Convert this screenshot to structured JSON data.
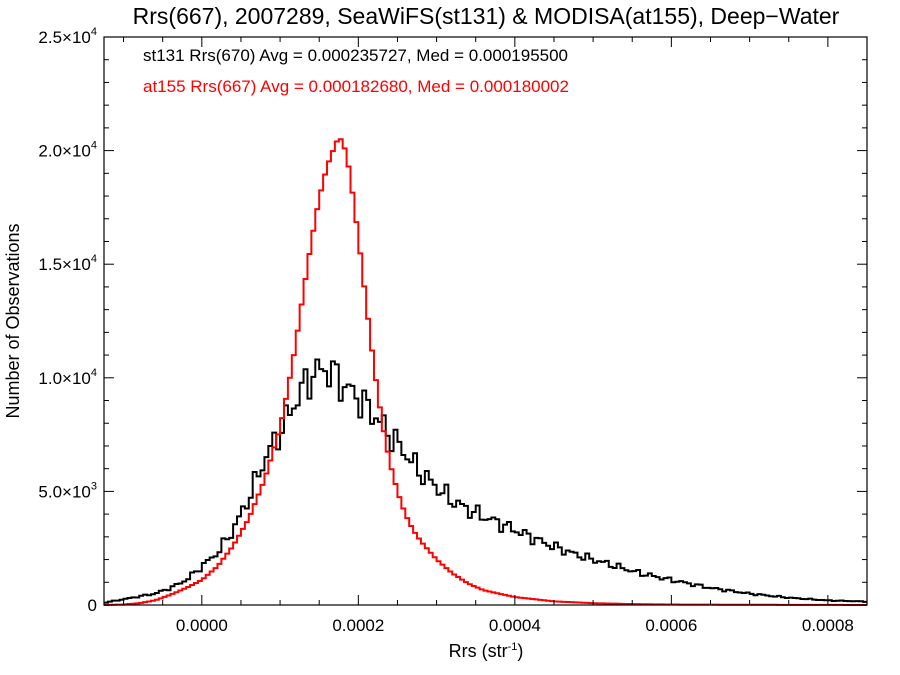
{
  "chart_data": {
    "type": "histogram",
    "title": "Rrs(667), 2007289, SeaWiFS(st131) & MODISA(at155), Deep−Water",
    "xlabel": "Rrs (str",
    "xlabel_sup": "-1",
    "xlabel_close": ")",
    "ylabel": "Number of Observations",
    "xlim": [
      -0.000125,
      0.00085
    ],
    "ylim": [
      0,
      25000
    ],
    "grid": false,
    "x_ticks": [
      {
        "value": 0.0,
        "label": "0.0000"
      },
      {
        "value": 0.0002,
        "label": "0.0002"
      },
      {
        "value": 0.0004,
        "label": "0.0004"
      },
      {
        "value": 0.0006,
        "label": "0.0006"
      },
      {
        "value": 0.0008,
        "label": "0.0008"
      }
    ],
    "y_ticks": [
      {
        "value": 0,
        "label": "0",
        "mant": "",
        "exp": ""
      },
      {
        "value": 5000,
        "label": "",
        "mant": "5.0×10",
        "exp": "3"
      },
      {
        "value": 10000,
        "label": "",
        "mant": "1.0×10",
        "exp": "4"
      },
      {
        "value": 15000,
        "label": "",
        "mant": "1.5×10",
        "exp": "4"
      },
      {
        "value": 20000,
        "label": "",
        "mant": "2.0×10",
        "exp": "4"
      },
      {
        "value": 25000,
        "label": "",
        "mant": "2.5×10",
        "exp": "4"
      }
    ],
    "bin_width": 5e-06,
    "series": [
      {
        "name": "st131 Rrs(670)",
        "legend_text": "st131 Rrs(670) Avg = 0.000235727, Med = 0.000195500",
        "color": "#000000",
        "x": [
          -0.000125,
          -0.0001,
          -8e-05,
          -6e-05,
          -4e-05,
          -2e-05,
          0.0,
          2e-05,
          4e-05,
          6e-05,
          8e-05,
          0.0001,
          0.00012,
          0.00013,
          0.00014,
          0.00015,
          0.00016,
          0.00017,
          0.00018,
          0.0002,
          0.00022,
          0.00024,
          0.00026,
          0.00028,
          0.0003,
          0.00032,
          0.00034,
          0.00036,
          0.0004,
          0.00044,
          0.00048,
          0.00052,
          0.00056,
          0.0006,
          0.00065,
          0.0007,
          0.00075,
          0.0008,
          0.00085
        ],
        "values": [
          100,
          250,
          380,
          500,
          750,
          1100,
          1700,
          2300,
          3300,
          4700,
          6400,
          7600,
          9000,
          9600,
          10100,
          10300,
          10400,
          10100,
          9700,
          9100,
          8400,
          7500,
          6700,
          5800,
          5200,
          4600,
          4200,
          3900,
          3300,
          2700,
          2200,
          1800,
          1400,
          1100,
          750,
          500,
          320,
          200,
          150
        ]
      },
      {
        "name": "at155 Rrs(667)",
        "legend_text": "at155 Rrs(667) Avg = 0.000182680, Med = 0.000180002",
        "color": "#ff0000",
        "x": [
          -0.000125,
          -0.0001,
          -8e-05,
          -6e-05,
          -4e-05,
          -2e-05,
          0.0,
          2e-05,
          4e-05,
          6e-05,
          8e-05,
          0.0001,
          0.00011,
          0.00012,
          0.00013,
          0.00014,
          0.00015,
          0.00016,
          0.00017,
          0.000175,
          0.00018,
          0.000185,
          0.00019,
          0.0002,
          0.00021,
          0.00022,
          0.00023,
          0.00024,
          0.00025,
          0.00026,
          0.00027,
          0.00028,
          0.0003,
          0.00032,
          0.00034,
          0.00036,
          0.0004,
          0.00045,
          0.0005,
          0.00055,
          0.0006,
          0.0007,
          0.0008,
          0.00085
        ],
        "values": [
          0,
          20,
          80,
          200,
          450,
          750,
          1100,
          1700,
          2600,
          3800,
          5500,
          7800,
          9500,
          11500,
          13800,
          16000,
          17900,
          19300,
          20200,
          20600,
          20400,
          19800,
          18800,
          16200,
          13300,
          10500,
          8100,
          6300,
          5000,
          4000,
          3300,
          2800,
          2000,
          1400,
          950,
          650,
          350,
          160,
          80,
          40,
          20,
          10,
          5,
          0
        ]
      }
    ]
  }
}
